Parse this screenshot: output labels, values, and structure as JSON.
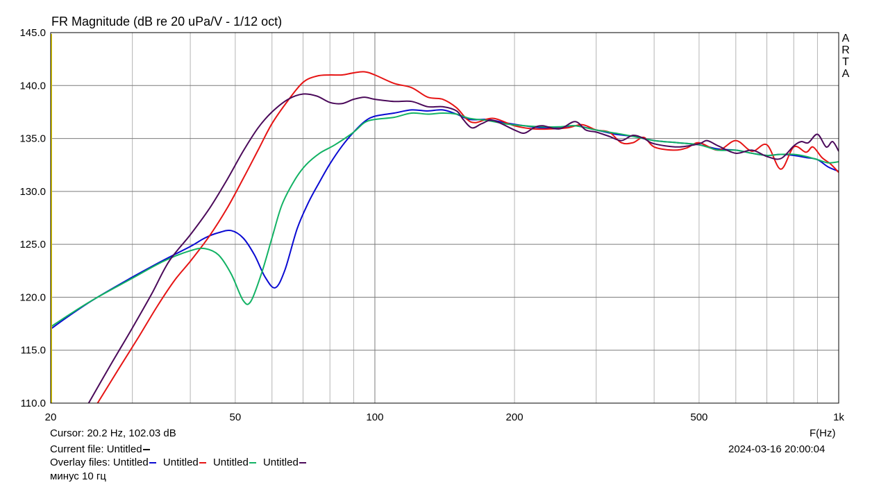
{
  "header": {
    "title": "FR Magnitude (dB re 20 uPa/V - 1/12 oct)",
    "watermark": [
      "A",
      "R",
      "T",
      "A"
    ]
  },
  "footer": {
    "cursor": "Cursor: 20.2 Hz, 102.03 dB",
    "current_file_label": "Current file: Untitled",
    "overlay_label": "Overlay files:",
    "overlay_names": [
      "Untitled",
      "Untitled",
      "Untitled",
      "Untitled"
    ],
    "note": "минус 10 гц",
    "x_unit": "F(Hz)",
    "timestamp": "2024-03-16  20:00:04"
  },
  "colors": {
    "current": "#000000",
    "blue": "#0a0ad2",
    "red": "#e61414",
    "green": "#12b264",
    "purple": "#4b0a5a",
    "grid": "#b4b4b4",
    "grid_major": "#7a7a7a"
  },
  "chart_data": {
    "type": "line",
    "title": "FR Magnitude (dB re 20 uPa/V - 1/12 oct)",
    "xlabel": "F(Hz)",
    "ylabel": "",
    "xscale": "log",
    "xlim": [
      20,
      1000
    ],
    "ylim": [
      110,
      145
    ],
    "grid": true,
    "x_ticks": [
      {
        "value": 20,
        "label": "20"
      },
      {
        "value": 50,
        "label": "50"
      },
      {
        "value": 100,
        "label": "100"
      },
      {
        "value": 200,
        "label": "200"
      },
      {
        "value": 500,
        "label": "500"
      },
      {
        "value": 1000,
        "label": "1k"
      }
    ],
    "y_ticks": [
      {
        "value": 110,
        "label": "110.0"
      },
      {
        "value": 115,
        "label": "115.0"
      },
      {
        "value": 120,
        "label": "120.0"
      },
      {
        "value": 125,
        "label": "125.0"
      },
      {
        "value": 130,
        "label": "130.0"
      },
      {
        "value": 135,
        "label": "135.0"
      },
      {
        "value": 140,
        "label": "140.0"
      },
      {
        "value": 145,
        "label": "145.0"
      }
    ],
    "series": [
      {
        "color": "blue",
        "points": [
          [
            20,
            117.0
          ],
          [
            22,
            118.3
          ],
          [
            25,
            119.9
          ],
          [
            30,
            121.9
          ],
          [
            35,
            123.5
          ],
          [
            40,
            124.8
          ],
          [
            43,
            125.6
          ],
          [
            46,
            126.1
          ],
          [
            49,
            126.3
          ],
          [
            52,
            125.6
          ],
          [
            55,
            124.0
          ],
          [
            58,
            121.9
          ],
          [
            61,
            120.9
          ],
          [
            64,
            122.6
          ],
          [
            68,
            126.5
          ],
          [
            72,
            129.0
          ],
          [
            76,
            130.9
          ],
          [
            80,
            132.6
          ],
          [
            85,
            134.3
          ],
          [
            90,
            135.6
          ],
          [
            95,
            136.6
          ],
          [
            100,
            137.1
          ],
          [
            110,
            137.4
          ],
          [
            120,
            137.7
          ],
          [
            130,
            137.6
          ],
          [
            140,
            137.7
          ],
          [
            150,
            137.3
          ],
          [
            160,
            136.8
          ],
          [
            175,
            136.8
          ],
          [
            190,
            136.5
          ],
          [
            210,
            136.2
          ],
          [
            230,
            136.0
          ],
          [
            250,
            136.0
          ],
          [
            270,
            136.2
          ],
          [
            300,
            135.8
          ],
          [
            330,
            135.4
          ],
          [
            360,
            135.2
          ],
          [
            400,
            134.8
          ],
          [
            450,
            134.6
          ],
          [
            500,
            134.4
          ],
          [
            550,
            134.0
          ],
          [
            600,
            133.9
          ],
          [
            650,
            133.6
          ],
          [
            700,
            133.4
          ],
          [
            750,
            133.5
          ],
          [
            800,
            133.4
          ],
          [
            850,
            133.2
          ],
          [
            900,
            133.0
          ],
          [
            950,
            132.3
          ],
          [
            1000,
            131.9
          ]
        ]
      },
      {
        "color": "red",
        "points": [
          [
            25,
            109.7
          ],
          [
            28,
            113.2
          ],
          [
            31,
            116.3
          ],
          [
            34,
            119.2
          ],
          [
            37,
            121.6
          ],
          [
            40,
            123.4
          ],
          [
            44,
            125.8
          ],
          [
            48,
            128.4
          ],
          [
            52,
            131.2
          ],
          [
            56,
            133.9
          ],
          [
            60,
            136.4
          ],
          [
            65,
            138.6
          ],
          [
            70,
            140.3
          ],
          [
            75,
            140.9
          ],
          [
            80,
            141.0
          ],
          [
            85,
            141.0
          ],
          [
            90,
            141.2
          ],
          [
            95,
            141.3
          ],
          [
            100,
            141.0
          ],
          [
            110,
            140.2
          ],
          [
            120,
            139.8
          ],
          [
            130,
            138.9
          ],
          [
            140,
            138.7
          ],
          [
            150,
            137.9
          ],
          [
            158,
            136.8
          ],
          [
            165,
            136.5
          ],
          [
            180,
            136.9
          ],
          [
            200,
            136.2
          ],
          [
            220,
            135.9
          ],
          [
            240,
            135.9
          ],
          [
            260,
            136.0
          ],
          [
            280,
            136.3
          ],
          [
            300,
            135.8
          ],
          [
            320,
            135.6
          ],
          [
            340,
            134.6
          ],
          [
            360,
            134.6
          ],
          [
            380,
            135.1
          ],
          [
            400,
            134.2
          ],
          [
            440,
            133.9
          ],
          [
            470,
            134.1
          ],
          [
            500,
            134.6
          ],
          [
            550,
            133.9
          ],
          [
            600,
            134.8
          ],
          [
            650,
            133.8
          ],
          [
            700,
            134.4
          ],
          [
            750,
            132.1
          ],
          [
            800,
            134.2
          ],
          [
            850,
            133.7
          ],
          [
            880,
            134.2
          ],
          [
            920,
            133.2
          ],
          [
            960,
            132.6
          ],
          [
            1000,
            131.8
          ]
        ]
      },
      {
        "color": "green",
        "points": [
          [
            20,
            117.2
          ],
          [
            22,
            118.4
          ],
          [
            25,
            119.9
          ],
          [
            30,
            121.8
          ],
          [
            35,
            123.4
          ],
          [
            40,
            124.4
          ],
          [
            43,
            124.6
          ],
          [
            46,
            124.0
          ],
          [
            49,
            122.2
          ],
          [
            52,
            119.7
          ],
          [
            54,
            119.6
          ],
          [
            57,
            122.3
          ],
          [
            60,
            125.6
          ],
          [
            63,
            128.7
          ],
          [
            67,
            131.0
          ],
          [
            71,
            132.5
          ],
          [
            76,
            133.6
          ],
          [
            82,
            134.4
          ],
          [
            90,
            135.6
          ],
          [
            95,
            136.5
          ],
          [
            100,
            136.8
          ],
          [
            110,
            137.0
          ],
          [
            120,
            137.4
          ],
          [
            130,
            137.3
          ],
          [
            140,
            137.4
          ],
          [
            150,
            137.3
          ],
          [
            160,
            136.9
          ],
          [
            175,
            136.7
          ],
          [
            190,
            136.4
          ],
          [
            210,
            136.2
          ],
          [
            230,
            136.1
          ],
          [
            250,
            136.1
          ],
          [
            270,
            136.2
          ],
          [
            300,
            135.8
          ],
          [
            330,
            135.5
          ],
          [
            360,
            135.2
          ],
          [
            400,
            134.8
          ],
          [
            450,
            134.6
          ],
          [
            500,
            134.4
          ],
          [
            550,
            133.9
          ],
          [
            600,
            133.9
          ],
          [
            650,
            133.6
          ],
          [
            700,
            133.4
          ],
          [
            750,
            133.5
          ],
          [
            800,
            133.5
          ],
          [
            850,
            133.3
          ],
          [
            900,
            133.0
          ],
          [
            950,
            132.7
          ],
          [
            1000,
            132.8
          ]
        ]
      },
      {
        "color": "purple",
        "points": [
          [
            24,
            109.8
          ],
          [
            27,
            113.7
          ],
          [
            30,
            117.1
          ],
          [
            33,
            120.3
          ],
          [
            36,
            123.4
          ],
          [
            40,
            125.9
          ],
          [
            44,
            128.4
          ],
          [
            48,
            131.1
          ],
          [
            52,
            133.8
          ],
          [
            56,
            136.0
          ],
          [
            60,
            137.5
          ],
          [
            65,
            138.7
          ],
          [
            70,
            139.2
          ],
          [
            75,
            139.0
          ],
          [
            80,
            138.4
          ],
          [
            85,
            138.3
          ],
          [
            90,
            138.7
          ],
          [
            95,
            138.9
          ],
          [
            100,
            138.7
          ],
          [
            110,
            138.5
          ],
          [
            120,
            138.5
          ],
          [
            130,
            138.0
          ],
          [
            140,
            138.0
          ],
          [
            150,
            137.6
          ],
          [
            155,
            136.8
          ],
          [
            162,
            136.0
          ],
          [
            170,
            136.4
          ],
          [
            180,
            136.7
          ],
          [
            200,
            135.8
          ],
          [
            210,
            135.5
          ],
          [
            220,
            136.0
          ],
          [
            230,
            136.2
          ],
          [
            250,
            135.9
          ],
          [
            270,
            136.6
          ],
          [
            285,
            135.8
          ],
          [
            300,
            135.6
          ],
          [
            320,
            135.2
          ],
          [
            340,
            134.8
          ],
          [
            360,
            135.3
          ],
          [
            380,
            135.0
          ],
          [
            400,
            134.5
          ],
          [
            450,
            134.2
          ],
          [
            500,
            134.5
          ],
          [
            520,
            134.8
          ],
          [
            550,
            134.3
          ],
          [
            600,
            133.6
          ],
          [
            650,
            133.9
          ],
          [
            700,
            133.3
          ],
          [
            750,
            133.1
          ],
          [
            800,
            134.3
          ],
          [
            830,
            134.7
          ],
          [
            860,
            134.6
          ],
          [
            900,
            135.4
          ],
          [
            940,
            134.2
          ],
          [
            970,
            134.7
          ],
          [
            1000,
            133.8
          ]
        ]
      }
    ]
  }
}
